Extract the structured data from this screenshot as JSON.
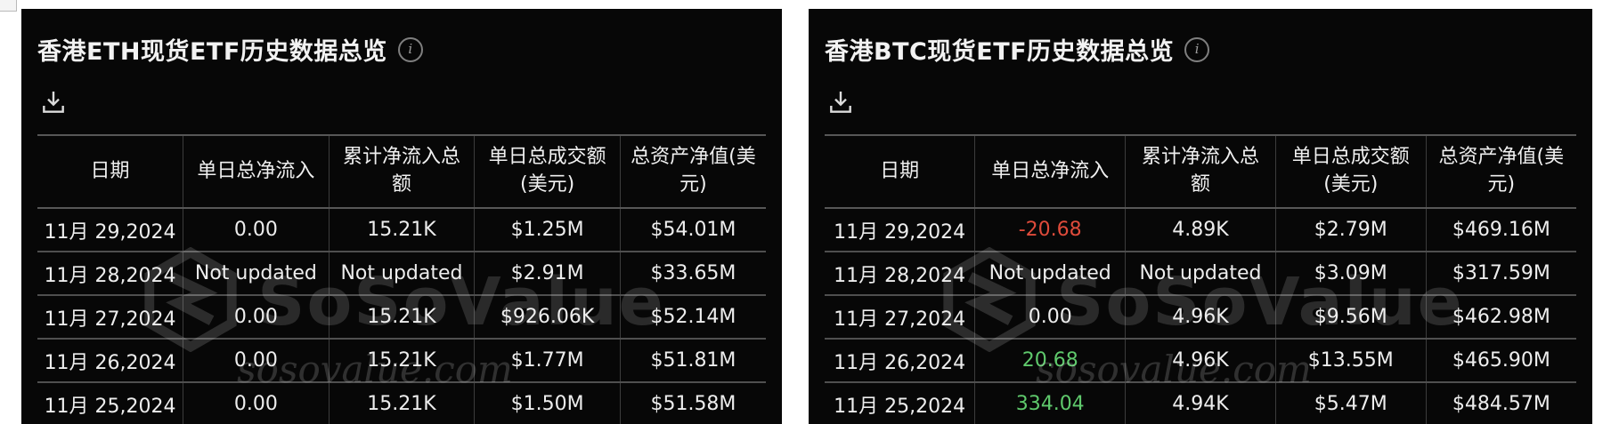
{
  "colors": {
    "positive": "#5fc96c",
    "negative": "#df4b3b",
    "card_bg": "#070707",
    "page_bg": "#ffffff"
  },
  "watermark": {
    "brand": "SoSoValue",
    "domain": "sosovalue.com"
  },
  "icons": {
    "info": "info-icon",
    "download": "download-icon"
  },
  "columns": [
    "日期",
    "单日总净流入",
    "累计净流入总额",
    "单日总成交额(美元)",
    "总资产净值(美元)"
  ],
  "panels": [
    {
      "id": "eth",
      "title": "香港ETH现货ETF历史数据总览",
      "rows": [
        {
          "date": "11月 29,2024",
          "daily_net_flow": "0.00",
          "flow_color": "neutral",
          "cumulative_net_flow": "15.21K",
          "daily_volume": "$1.25M",
          "net_assets": "$54.01M"
        },
        {
          "date": "11月 28,2024",
          "daily_net_flow": "Not updated",
          "flow_color": "neutral",
          "cumulative_net_flow": "Not updated",
          "daily_volume": "$2.91M",
          "net_assets": "$33.65M"
        },
        {
          "date": "11月 27,2024",
          "daily_net_flow": "0.00",
          "flow_color": "neutral",
          "cumulative_net_flow": "15.21K",
          "daily_volume": "$926.06K",
          "net_assets": "$52.14M"
        },
        {
          "date": "11月 26,2024",
          "daily_net_flow": "0.00",
          "flow_color": "neutral",
          "cumulative_net_flow": "15.21K",
          "daily_volume": "$1.77M",
          "net_assets": "$51.81M"
        },
        {
          "date": "11月 25,2024",
          "daily_net_flow": "0.00",
          "flow_color": "neutral",
          "cumulative_net_flow": "15.21K",
          "daily_volume": "$1.50M",
          "net_assets": "$51.58M"
        }
      ]
    },
    {
      "id": "btc",
      "title": "香港BTC现货ETF历史数据总览",
      "rows": [
        {
          "date": "11月 29,2024",
          "daily_net_flow": "-20.68",
          "flow_color": "negative",
          "cumulative_net_flow": "4.89K",
          "daily_volume": "$2.79M",
          "net_assets": "$469.16M"
        },
        {
          "date": "11月 28,2024",
          "daily_net_flow": "Not updated",
          "flow_color": "neutral",
          "cumulative_net_flow": "Not updated",
          "daily_volume": "$3.09M",
          "net_assets": "$317.59M"
        },
        {
          "date": "11月 27,2024",
          "daily_net_flow": "0.00",
          "flow_color": "neutral",
          "cumulative_net_flow": "4.96K",
          "daily_volume": "$9.56M",
          "net_assets": "$462.98M"
        },
        {
          "date": "11月 26,2024",
          "daily_net_flow": "20.68",
          "flow_color": "positive",
          "cumulative_net_flow": "4.96K",
          "daily_volume": "$13.55M",
          "net_assets": "$465.90M"
        },
        {
          "date": "11月 25,2024",
          "daily_net_flow": "334.04",
          "flow_color": "positive",
          "cumulative_net_flow": "4.94K",
          "daily_volume": "$5.47M",
          "net_assets": "$484.57M"
        }
      ]
    }
  ]
}
